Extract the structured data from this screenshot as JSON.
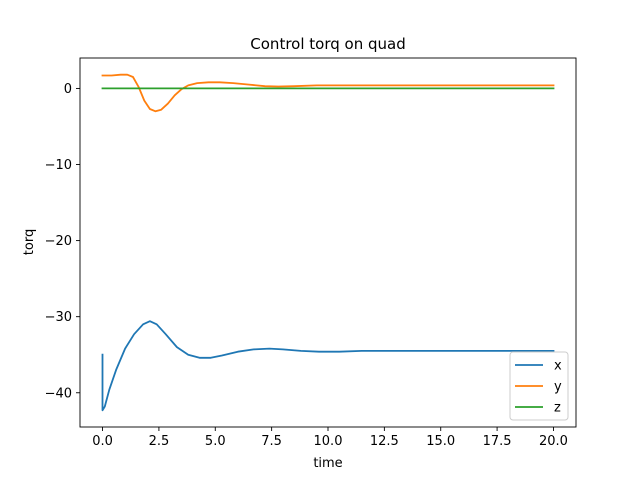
{
  "chart_data": {
    "type": "line",
    "title": "Control torq on quad",
    "xlabel": "time",
    "ylabel": "torq",
    "xlim": [
      -1.0,
      21.0
    ],
    "ylim": [
      -44.5,
      4.0
    ],
    "xticks": [
      {
        "value": 0.0,
        "label": "0.0"
      },
      {
        "value": 2.5,
        "label": "2.5"
      },
      {
        "value": 5.0,
        "label": "5.0"
      },
      {
        "value": 7.5,
        "label": "7.5"
      },
      {
        "value": 10.0,
        "label": "10.0"
      },
      {
        "value": 12.5,
        "label": "12.5"
      },
      {
        "value": 15.0,
        "label": "15.0"
      },
      {
        "value": 17.5,
        "label": "17.5"
      },
      {
        "value": 20.0,
        "label": "20.0"
      }
    ],
    "yticks": [
      {
        "value": 0,
        "label": "0"
      },
      {
        "value": -10,
        "label": "−10"
      },
      {
        "value": -20,
        "label": "−20"
      },
      {
        "value": -30,
        "label": "−30"
      },
      {
        "value": -40,
        "label": "−40"
      }
    ],
    "grid": false,
    "legend_position": "lower-right",
    "series": [
      {
        "name": "x",
        "color": "#1f77b4",
        "x": [
          0.0,
          0.0,
          0.1,
          0.3,
          0.6,
          1.0,
          1.4,
          1.8,
          2.1,
          2.4,
          2.8,
          3.3,
          3.8,
          4.3,
          4.8,
          5.3,
          6.0,
          6.7,
          7.4,
          8.0,
          8.8,
          9.6,
          10.5,
          11.5,
          12.5,
          14.0,
          16.0,
          18.0,
          20.0
        ],
        "y": [
          -35.0,
          -42.3,
          -41.8,
          -39.6,
          -37.0,
          -34.2,
          -32.3,
          -31.0,
          -30.6,
          -31.0,
          -32.3,
          -34.0,
          -35.0,
          -35.4,
          -35.4,
          -35.1,
          -34.6,
          -34.3,
          -34.2,
          -34.3,
          -34.5,
          -34.6,
          -34.6,
          -34.5,
          -34.5,
          -34.5,
          -34.5,
          -34.5,
          -34.5
        ]
      },
      {
        "name": "y",
        "color": "#ff7f0e",
        "x": [
          0.0,
          0.4,
          0.8,
          1.1,
          1.35,
          1.6,
          1.85,
          2.1,
          2.35,
          2.6,
          2.9,
          3.2,
          3.5,
          3.8,
          4.2,
          4.7,
          5.2,
          5.8,
          6.5,
          7.2,
          7.8,
          8.5,
          9.5,
          10.5,
          12.0,
          14.0,
          16.0,
          18.0,
          20.0
        ],
        "y": [
          1.7,
          1.7,
          1.8,
          1.8,
          1.5,
          0.2,
          -1.6,
          -2.7,
          -3.0,
          -2.8,
          -2.0,
          -0.9,
          -0.1,
          0.4,
          0.7,
          0.8,
          0.8,
          0.7,
          0.5,
          0.3,
          0.25,
          0.3,
          0.4,
          0.4,
          0.4,
          0.4,
          0.4,
          0.4,
          0.4
        ]
      },
      {
        "name": "z",
        "color": "#2ca02c",
        "x": [
          0.0,
          20.0
        ],
        "y": [
          0.0,
          0.0
        ]
      }
    ]
  }
}
